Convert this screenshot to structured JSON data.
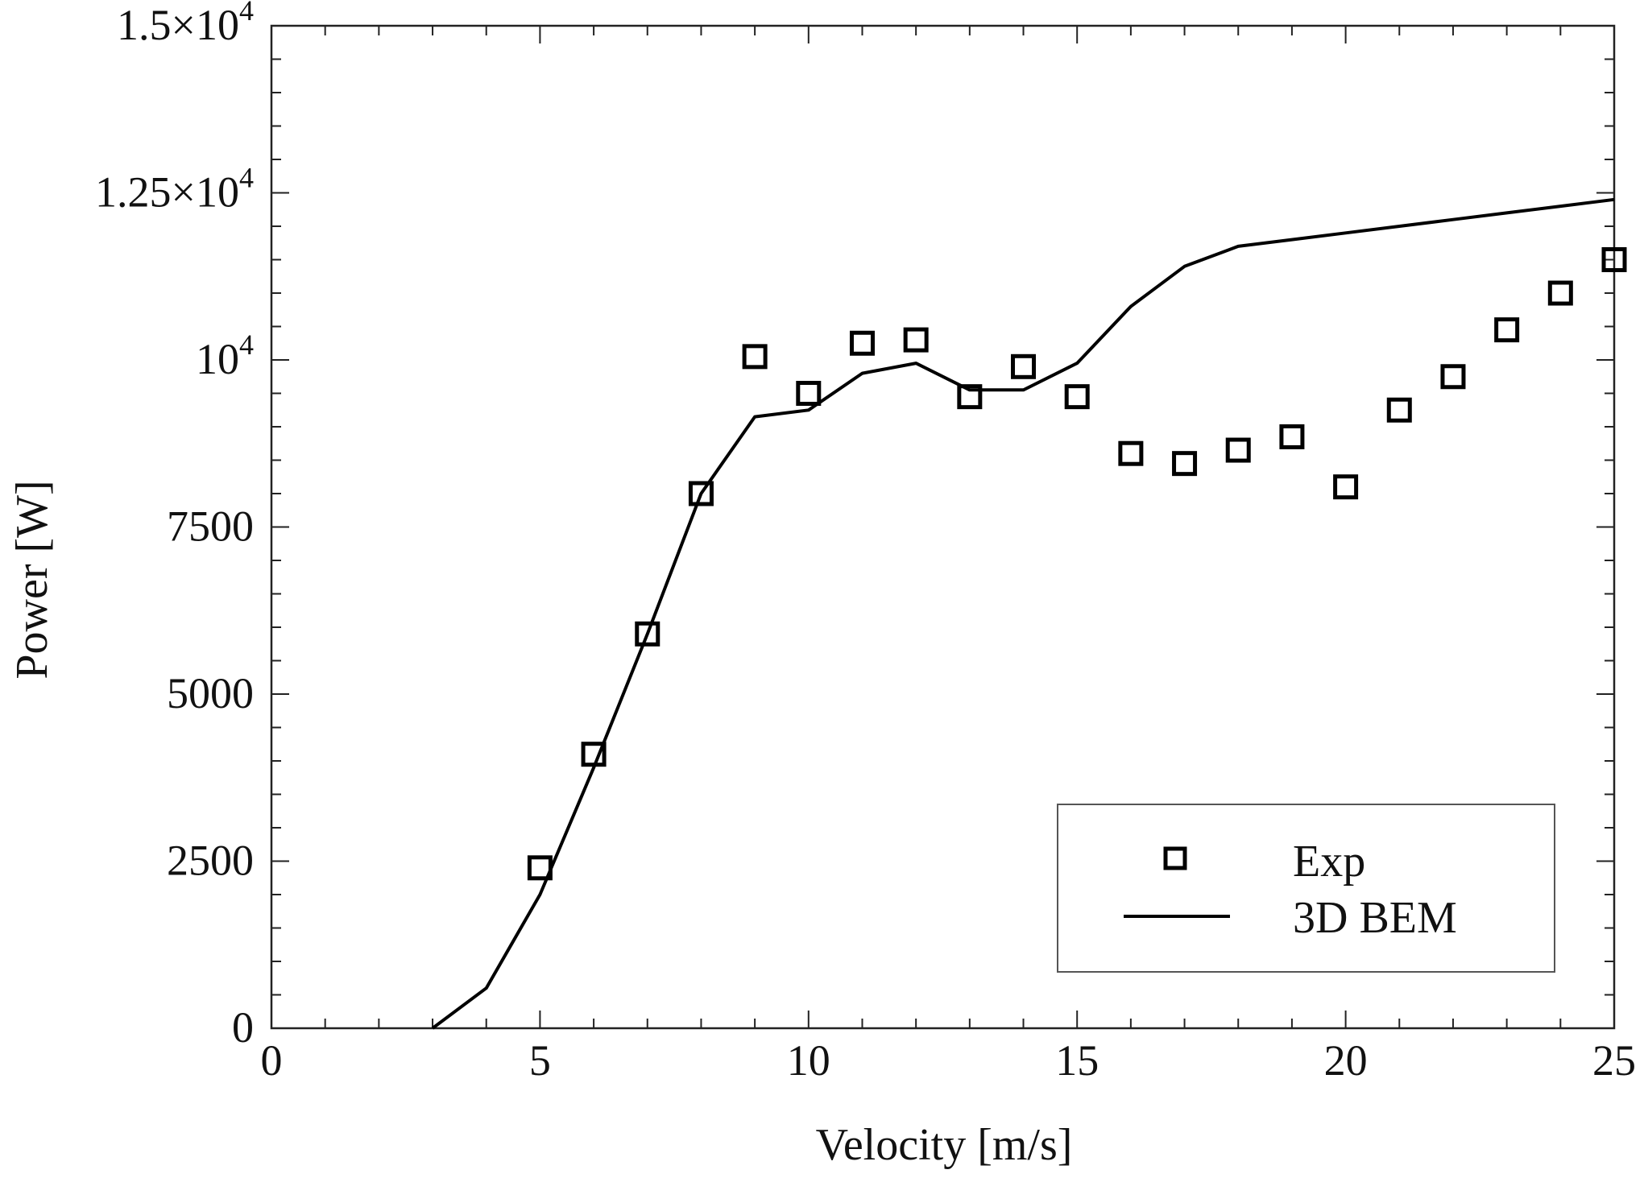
{
  "chart_data": {
    "type": "line",
    "title": "",
    "xlabel": "Velocity [m/s]",
    "ylabel": "Power [W]",
    "xlim": [
      0,
      25
    ],
    "ylim": [
      0,
      15000
    ],
    "grid": false,
    "legend_position": "bottom-right",
    "x_ticks": [
      {
        "value": 0,
        "label": "0"
      },
      {
        "value": 5,
        "label": "5"
      },
      {
        "value": 10,
        "label": "10"
      },
      {
        "value": 15,
        "label": "15"
      },
      {
        "value": 20,
        "label": "20"
      },
      {
        "value": 25,
        "label": "25"
      }
    ],
    "y_ticks": [
      {
        "value": 0,
        "label": "0"
      },
      {
        "value": 2500,
        "label": "2500"
      },
      {
        "value": 5000,
        "label": "5000"
      },
      {
        "value": 7500,
        "label": "7500"
      },
      {
        "value": 10000,
        "label": "10",
        "exp": "4"
      },
      {
        "value": 12500,
        "label": "1.25×10",
        "exp": "4"
      },
      {
        "value": 15000,
        "label": "1.5×10",
        "exp": "4"
      }
    ],
    "series": [
      {
        "name": "Exp",
        "style": "square-marker",
        "x": [
          5,
          6,
          7,
          8,
          9,
          10,
          11,
          12,
          13,
          14,
          15,
          16,
          17,
          18,
          19,
          20,
          21,
          22,
          23,
          24,
          25
        ],
        "y": [
          2400,
          4100,
          5900,
          8000,
          10050,
          9500,
          10250,
          10300,
          9450,
          9900,
          9450,
          8600,
          8450,
          8650,
          8850,
          8100,
          9250,
          9750,
          10450,
          11000,
          11500
        ]
      },
      {
        "name": "3D BEM",
        "style": "solid-line",
        "x": [
          3,
          4,
          5,
          6,
          7,
          8,
          9,
          10,
          11,
          12,
          13,
          14,
          15,
          16,
          17,
          18,
          19,
          20,
          21,
          22,
          23,
          24,
          25
        ],
        "y": [
          0,
          600,
          2000,
          3900,
          5900,
          8000,
          9150,
          9250,
          9800,
          9950,
          9550,
          9550,
          9950,
          10800,
          11400,
          11700,
          11800,
          11900,
          12000,
          12100,
          12200,
          12300,
          12400
        ]
      }
    ]
  }
}
